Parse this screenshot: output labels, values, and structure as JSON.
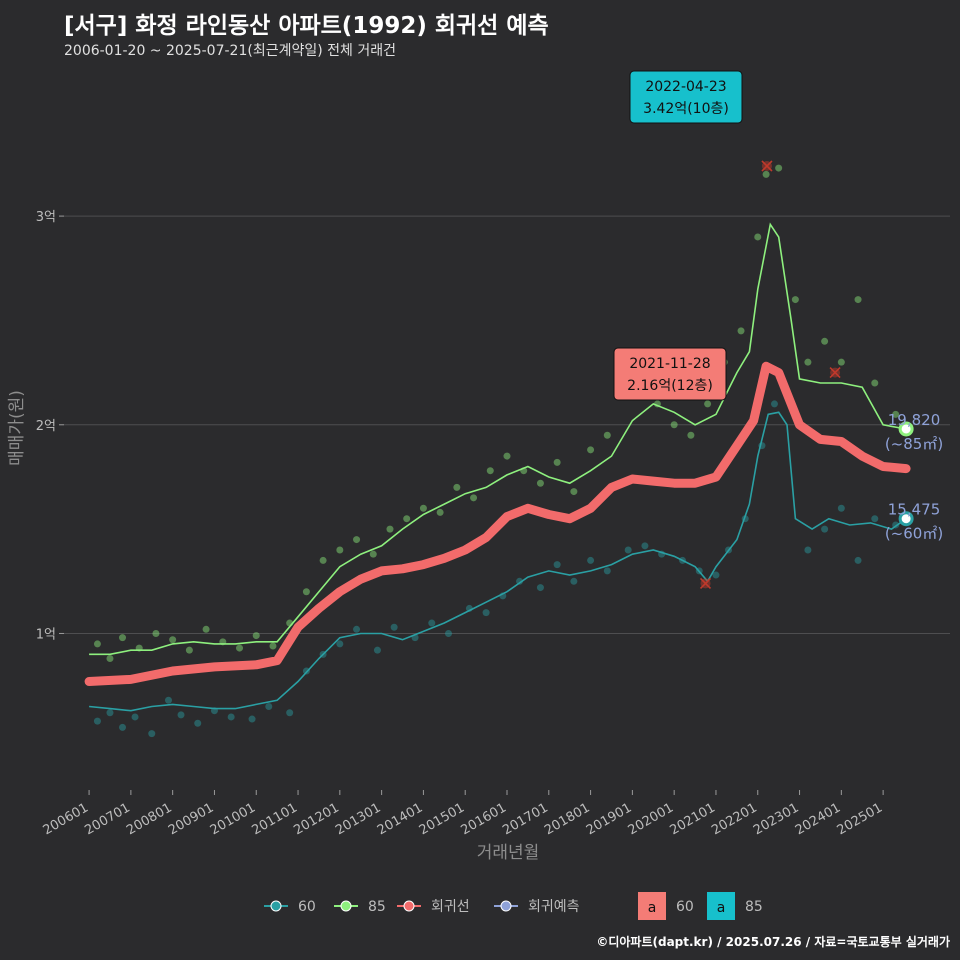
{
  "header": {
    "title": "[서구] 화정 라인동산 아파트(1992) 회귀선 예측",
    "subtitle": "2006-01-20 ~ 2025-07-21(최근계약일) 전체 거래건"
  },
  "credit": "©디아파트(dapt.kr) / 2025.07.26 / 자료=국토교통부 실거래가",
  "colors": {
    "background": "#2b2b2d",
    "grid": "#4e4e50",
    "series_60": "#2aa0a4",
    "series_85": "#8ef07e",
    "regression": "#f26b6b",
    "prediction": "#8fa2d8",
    "callout_teal": "#17c0cc",
    "callout_red": "#f47c76"
  },
  "chart_data": {
    "type": "scatter",
    "xlabel": "거래년월",
    "ylabel": "매매가(원)",
    "x_ticks": [
      "200601",
      "200701",
      "200801",
      "200901",
      "201001",
      "201101",
      "201201",
      "201301",
      "201401",
      "201501",
      "201601",
      "201701",
      "201801",
      "201901",
      "202001",
      "202101",
      "202201",
      "202301",
      "202401",
      "202501"
    ],
    "y_ticks": [
      {
        "value": 1,
        "label": "1억"
      },
      {
        "value": 2,
        "label": "2억"
      },
      {
        "value": 3,
        "label": "3억"
      }
    ],
    "xlim": [
      2005.4,
      2026.6
    ],
    "ylim": [
      0.25,
      3.7
    ],
    "series": [
      {
        "name": "60",
        "points": [
          [
            2006.0,
            0.65
          ],
          [
            2006.5,
            0.64
          ],
          [
            2007.0,
            0.63
          ],
          [
            2007.5,
            0.65
          ],
          [
            2008.0,
            0.66
          ],
          [
            2008.5,
            0.65
          ],
          [
            2009.0,
            0.64
          ],
          [
            2009.5,
            0.64
          ],
          [
            2010.0,
            0.66
          ],
          [
            2010.5,
            0.68
          ],
          [
            2011.0,
            0.77
          ],
          [
            2011.5,
            0.88
          ],
          [
            2012.0,
            0.98
          ],
          [
            2012.5,
            1.0
          ],
          [
            2013.0,
            1.0
          ],
          [
            2013.5,
            0.97
          ],
          [
            2014.0,
            1.01
          ],
          [
            2014.5,
            1.05
          ],
          [
            2015.0,
            1.1
          ],
          [
            2015.5,
            1.15
          ],
          [
            2016.0,
            1.2
          ],
          [
            2016.5,
            1.27
          ],
          [
            2017.0,
            1.3
          ],
          [
            2017.5,
            1.28
          ],
          [
            2018.0,
            1.3
          ],
          [
            2018.5,
            1.33
          ],
          [
            2019.0,
            1.38
          ],
          [
            2019.5,
            1.4
          ],
          [
            2020.0,
            1.37
          ],
          [
            2020.5,
            1.32
          ],
          [
            2020.8,
            1.25
          ],
          [
            2021.0,
            1.32
          ],
          [
            2021.5,
            1.45
          ],
          [
            2021.8,
            1.62
          ],
          [
            2022.0,
            1.85
          ],
          [
            2022.25,
            2.05
          ],
          [
            2022.5,
            2.06
          ],
          [
            2022.7,
            2.0
          ],
          [
            2022.9,
            1.55
          ],
          [
            2023.3,
            1.5
          ],
          [
            2023.7,
            1.55
          ],
          [
            2024.2,
            1.52
          ],
          [
            2024.7,
            1.53
          ],
          [
            2025.2,
            1.5
          ],
          [
            2025.55,
            1.55
          ]
        ]
      },
      {
        "name": "85",
        "points": [
          [
            2006.0,
            0.9
          ],
          [
            2006.5,
            0.9
          ],
          [
            2007.0,
            0.92
          ],
          [
            2007.5,
            0.92
          ],
          [
            2008.0,
            0.95
          ],
          [
            2008.5,
            0.96
          ],
          [
            2009.0,
            0.95
          ],
          [
            2009.5,
            0.95
          ],
          [
            2010.0,
            0.96
          ],
          [
            2010.5,
            0.96
          ],
          [
            2011.0,
            1.08
          ],
          [
            2011.5,
            1.2
          ],
          [
            2012.0,
            1.32
          ],
          [
            2012.5,
            1.38
          ],
          [
            2013.0,
            1.42
          ],
          [
            2013.5,
            1.5
          ],
          [
            2014.0,
            1.57
          ],
          [
            2014.5,
            1.62
          ],
          [
            2015.0,
            1.67
          ],
          [
            2015.5,
            1.7
          ],
          [
            2016.0,
            1.76
          ],
          [
            2016.5,
            1.8
          ],
          [
            2017.0,
            1.75
          ],
          [
            2017.5,
            1.72
          ],
          [
            2018.0,
            1.78
          ],
          [
            2018.5,
            1.85
          ],
          [
            2019.0,
            2.02
          ],
          [
            2019.5,
            2.1
          ],
          [
            2020.0,
            2.06
          ],
          [
            2020.5,
            2.0
          ],
          [
            2021.0,
            2.05
          ],
          [
            2021.5,
            2.25
          ],
          [
            2021.8,
            2.35
          ],
          [
            2022.0,
            2.65
          ],
          [
            2022.3,
            2.96
          ],
          [
            2022.5,
            2.9
          ],
          [
            2022.8,
            2.5
          ],
          [
            2023.0,
            2.22
          ],
          [
            2023.5,
            2.2
          ],
          [
            2024.0,
            2.2
          ],
          [
            2024.5,
            2.18
          ],
          [
            2025.0,
            2.0
          ],
          [
            2025.55,
            1.98
          ]
        ]
      },
      {
        "name": "회귀선",
        "points": [
          [
            2006.0,
            0.77
          ],
          [
            2007.0,
            0.78
          ],
          [
            2008.0,
            0.82
          ],
          [
            2009.0,
            0.84
          ],
          [
            2010.0,
            0.85
          ],
          [
            2010.5,
            0.87
          ],
          [
            2011.0,
            1.03
          ],
          [
            2011.5,
            1.12
          ],
          [
            2012.0,
            1.2
          ],
          [
            2012.5,
            1.26
          ],
          [
            2013.0,
            1.3
          ],
          [
            2013.5,
            1.31
          ],
          [
            2014.0,
            1.33
          ],
          [
            2014.5,
            1.36
          ],
          [
            2015.0,
            1.4
          ],
          [
            2015.5,
            1.46
          ],
          [
            2016.0,
            1.56
          ],
          [
            2016.5,
            1.6
          ],
          [
            2017.0,
            1.57
          ],
          [
            2017.5,
            1.55
          ],
          [
            2018.0,
            1.6
          ],
          [
            2018.5,
            1.7
          ],
          [
            2019.0,
            1.74
          ],
          [
            2019.5,
            1.73
          ],
          [
            2020.0,
            1.72
          ],
          [
            2020.5,
            1.72
          ],
          [
            2021.0,
            1.75
          ],
          [
            2021.5,
            1.9
          ],
          [
            2021.9,
            2.02
          ],
          [
            2022.2,
            2.28
          ],
          [
            2022.5,
            2.25
          ],
          [
            2022.8,
            2.1
          ],
          [
            2023.0,
            2.0
          ],
          [
            2023.5,
            1.93
          ],
          [
            2024.0,
            1.92
          ],
          [
            2024.5,
            1.85
          ],
          [
            2025.0,
            1.8
          ],
          [
            2025.55,
            1.79
          ]
        ]
      },
      {
        "name": "회귀예측",
        "points": []
      }
    ],
    "scatter_60": [
      [
        2006.2,
        0.58
      ],
      [
        2006.5,
        0.62
      ],
      [
        2006.8,
        0.55
      ],
      [
        2007.1,
        0.6
      ],
      [
        2007.5,
        0.52
      ],
      [
        2007.9,
        0.68
      ],
      [
        2008.2,
        0.61
      ],
      [
        2008.6,
        0.57
      ],
      [
        2009.0,
        0.63
      ],
      [
        2009.4,
        0.6
      ],
      [
        2009.9,
        0.59
      ],
      [
        2010.3,
        0.65
      ],
      [
        2010.8,
        0.62
      ],
      [
        2011.2,
        0.82
      ],
      [
        2011.6,
        0.9
      ],
      [
        2012.0,
        0.95
      ],
      [
        2012.4,
        1.02
      ],
      [
        2012.9,
        0.92
      ],
      [
        2013.3,
        1.03
      ],
      [
        2013.8,
        0.98
      ],
      [
        2014.2,
        1.05
      ],
      [
        2014.6,
        1.0
      ],
      [
        2015.1,
        1.12
      ],
      [
        2015.5,
        1.1
      ],
      [
        2015.9,
        1.18
      ],
      [
        2016.3,
        1.25
      ],
      [
        2016.8,
        1.22
      ],
      [
        2017.2,
        1.33
      ],
      [
        2017.6,
        1.25
      ],
      [
        2018.0,
        1.35
      ],
      [
        2018.4,
        1.3
      ],
      [
        2018.9,
        1.4
      ],
      [
        2019.3,
        1.42
      ],
      [
        2019.7,
        1.38
      ],
      [
        2020.2,
        1.35
      ],
      [
        2020.6,
        1.3
      ],
      [
        2021.0,
        1.28
      ],
      [
        2021.3,
        1.4
      ],
      [
        2021.7,
        1.55
      ],
      [
        2022.1,
        1.9
      ],
      [
        2022.4,
        2.1
      ],
      [
        2023.2,
        1.4
      ],
      [
        2023.6,
        1.5
      ],
      [
        2024.0,
        1.6
      ],
      [
        2024.4,
        1.35
      ],
      [
        2024.8,
        1.55
      ],
      [
        2025.3,
        1.52
      ]
    ],
    "scatter_85": [
      [
        2006.2,
        0.95
      ],
      [
        2006.5,
        0.88
      ],
      [
        2006.8,
        0.98
      ],
      [
        2007.2,
        0.93
      ],
      [
        2007.6,
        1.0
      ],
      [
        2008.0,
        0.97
      ],
      [
        2008.4,
        0.92
      ],
      [
        2008.8,
        1.02
      ],
      [
        2009.2,
        0.96
      ],
      [
        2009.6,
        0.93
      ],
      [
        2010.0,
        0.99
      ],
      [
        2010.4,
        0.94
      ],
      [
        2010.8,
        1.05
      ],
      [
        2011.2,
        1.2
      ],
      [
        2011.6,
        1.35
      ],
      [
        2012.0,
        1.4
      ],
      [
        2012.4,
        1.45
      ],
      [
        2012.8,
        1.38
      ],
      [
        2013.2,
        1.5
      ],
      [
        2013.6,
        1.55
      ],
      [
        2014.0,
        1.6
      ],
      [
        2014.4,
        1.58
      ],
      [
        2014.8,
        1.7
      ],
      [
        2015.2,
        1.65
      ],
      [
        2015.6,
        1.78
      ],
      [
        2016.0,
        1.85
      ],
      [
        2016.4,
        1.78
      ],
      [
        2016.8,
        1.72
      ],
      [
        2017.2,
        1.82
      ],
      [
        2017.6,
        1.68
      ],
      [
        2018.0,
        1.88
      ],
      [
        2018.4,
        1.95
      ],
      [
        2018.8,
        2.15
      ],
      [
        2019.2,
        2.3
      ],
      [
        2019.6,
        2.1
      ],
      [
        2020.0,
        2.0
      ],
      [
        2020.4,
        1.95
      ],
      [
        2020.8,
        2.1
      ],
      [
        2021.2,
        2.3
      ],
      [
        2021.6,
        2.45
      ],
      [
        2022.0,
        2.9
      ],
      [
        2022.2,
        3.2
      ],
      [
        2022.5,
        3.23
      ],
      [
        2022.9,
        2.6
      ],
      [
        2023.2,
        2.3
      ],
      [
        2023.6,
        2.4
      ],
      [
        2024.0,
        2.3
      ],
      [
        2024.4,
        2.6
      ],
      [
        2024.8,
        2.2
      ],
      [
        2025.3,
        2.05
      ]
    ],
    "outliers": [
      [
        2022.22,
        3.24
      ],
      [
        2023.85,
        2.25
      ],
      [
        2020.75,
        1.24
      ]
    ],
    "annotations": [
      {
        "date": "2022-04-23",
        "price_label": "3.42억(10층)",
        "x": 2022.31,
        "y": 3.42,
        "style": "teal"
      },
      {
        "date": "2021-11-28",
        "price_label": "2.16억(12층)",
        "x": 2021.9,
        "y": 2.16,
        "style": "red"
      }
    ],
    "end_labels": [
      {
        "series": "85",
        "value": "19,820",
        "area": "(~85㎡)",
        "y": 1.98
      },
      {
        "series": "60",
        "value": "15,475",
        "area": "(~60㎡)",
        "y": 1.55
      }
    ],
    "legend": {
      "items": [
        "60",
        "85",
        "회귀선",
        "회귀예측"
      ],
      "label_keys": [
        {
          "glyph": "a",
          "label": "60",
          "style": "red"
        },
        {
          "glyph": "a",
          "label": "85",
          "style": "teal"
        }
      ],
      "placement": "bottom"
    }
  }
}
